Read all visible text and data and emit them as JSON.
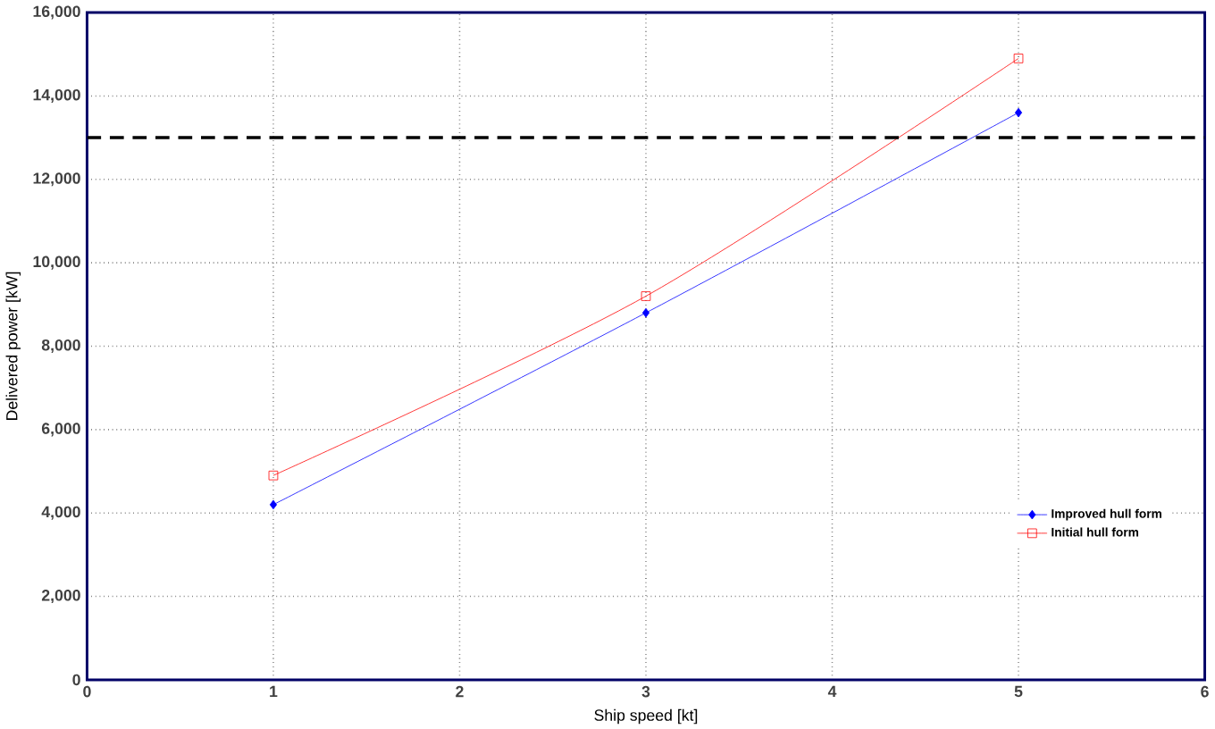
{
  "chart_data": {
    "type": "line",
    "xlabel": "Ship speed [kt]",
    "ylabel": "Delivered power [kW]",
    "xlim": [
      0,
      6
    ],
    "xticks": [
      0,
      1,
      2,
      3,
      4,
      5,
      6
    ],
    "ylim": [
      0,
      16000
    ],
    "yticks": [
      {
        "value": 0,
        "label": "0"
      },
      {
        "value": 2000,
        "label": "2,000"
      },
      {
        "value": 4000,
        "label": "4,000"
      },
      {
        "value": 6000,
        "label": "6,000"
      },
      {
        "value": 8000,
        "label": "8,000"
      },
      {
        "value": 10000,
        "label": "10,000"
      },
      {
        "value": 12000,
        "label": "12,000"
      },
      {
        "value": 14000,
        "label": "14,000"
      },
      {
        "value": 16000,
        "label": "16,000"
      }
    ],
    "x": [
      1,
      3,
      5
    ],
    "series": [
      {
        "name": "Improved hull form",
        "color": "#0000ff",
        "marker": "diamond",
        "values": [
          4200,
          8800,
          13600
        ]
      },
      {
        "name": "Initial hull form",
        "color": "#ff0000",
        "marker": "square",
        "values": [
          4900,
          9200,
          14900
        ]
      }
    ],
    "ref_lines": [
      {
        "axis": "y",
        "value": 13000,
        "color": "#000000",
        "line_style": "dashed"
      }
    ],
    "grid": true,
    "legend": "bottom right",
    "line_style": "solid"
  }
}
